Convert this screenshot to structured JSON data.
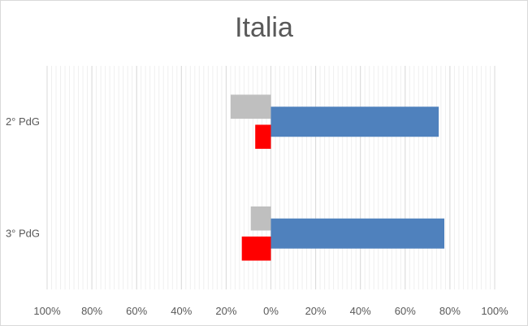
{
  "chart_data": {
    "type": "bar",
    "orientation": "horizontal",
    "title": "Italia",
    "categories": [
      "2° PdG",
      "3° PdG"
    ],
    "series": [
      {
        "color": "#4f81bd",
        "values": [
          0.75,
          0.775
        ]
      },
      {
        "color": "#bfbfbf",
        "values": [
          -0.18,
          -0.09
        ]
      },
      {
        "color": "#ff0000",
        "values": [
          -0.07,
          -0.13
        ]
      }
    ],
    "xlim": [
      -1,
      1
    ],
    "xticks": [
      -1,
      -0.8,
      -0.6,
      -0.4,
      -0.2,
      0,
      0.2,
      0.4,
      0.6,
      0.8,
      1
    ],
    "xtick_labels": [
      "100%",
      "80%",
      "60%",
      "40%",
      "20%",
      "0%",
      "20%",
      "40%",
      "60%",
      "80%",
      "100%"
    ],
    "grid": true,
    "legend": "none"
  }
}
